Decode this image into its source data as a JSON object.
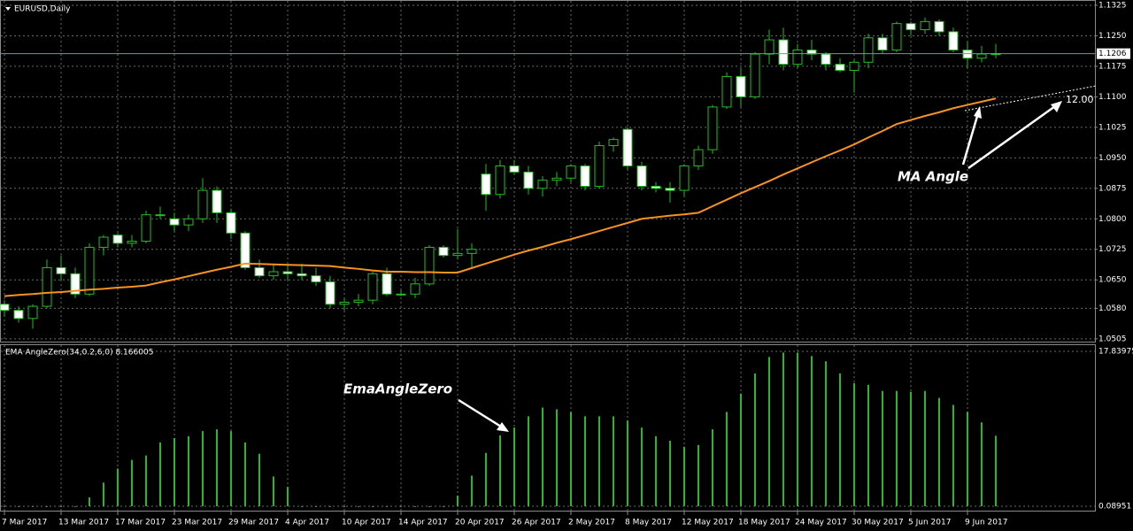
{
  "chart_data": [
    {
      "type": "candlestick",
      "title": "EURUSD,Daily",
      "open": [
        1.059,
        1.0575,
        1.0555,
        1.0585,
        1.068,
        1.0665,
        1.0615,
        1.073,
        1.076,
        1.074,
        1.0745,
        1.081,
        1.08,
        1.0785,
        1.08,
        1.087,
        1.0815,
        1.0765,
        1.068,
        1.066,
        1.067,
        1.0665,
        1.066,
        1.0645,
        1.059,
        1.0595,
        1.06,
        1.0665,
        1.0615,
        1.0615,
        1.064,
        1.073,
        1.071,
        1.0715,
        1.091,
        1.086,
        1.093,
        1.0915,
        1.0875,
        1.0895,
        1.09,
        1.093,
        1.088,
        1.098,
        1.102,
        1.093,
        1.088,
        1.0875,
        1.087,
        1.093,
        1.097,
        1.1075,
        1.115,
        1.11,
        1.1205,
        1.124,
        1.118,
        1.1215,
        1.1205,
        1.118,
        1.1165,
        1.1185,
        1.1245,
        1.1215,
        1.128,
        1.1265,
        1.1285,
        1.126,
        1.1215,
        1.1195,
        1.1205
      ],
      "high": [
        1.06,
        1.0585,
        1.059,
        1.07,
        1.071,
        1.068,
        1.074,
        1.076,
        1.0765,
        1.076,
        1.082,
        1.083,
        1.0815,
        1.081,
        1.09,
        1.088,
        1.0825,
        1.077,
        1.07,
        1.069,
        1.0685,
        1.069,
        1.068,
        1.066,
        1.0605,
        1.0615,
        1.067,
        1.068,
        1.0625,
        1.0655,
        1.0735,
        1.0735,
        1.0775,
        1.074,
        1.0935,
        1.0945,
        1.0945,
        1.093,
        1.0905,
        1.0915,
        1.0935,
        1.0935,
        1.099,
        1.1,
        1.1025,
        1.094,
        1.089,
        1.089,
        1.0935,
        1.098,
        1.108,
        1.116,
        1.117,
        1.121,
        1.1265,
        1.127,
        1.123,
        1.124,
        1.121,
        1.1195,
        1.119,
        1.1255,
        1.1255,
        1.1285,
        1.1285,
        1.1295,
        1.129,
        1.127,
        1.1235,
        1.1225,
        1.123
      ],
      "low": [
        1.056,
        1.0545,
        1.053,
        1.058,
        1.065,
        1.0605,
        1.061,
        1.071,
        1.073,
        1.073,
        1.074,
        1.08,
        1.077,
        1.077,
        1.079,
        1.079,
        1.075,
        1.0675,
        1.0655,
        1.065,
        1.065,
        1.065,
        1.0635,
        1.058,
        1.0575,
        1.0585,
        1.059,
        1.061,
        1.061,
        1.0605,
        1.0635,
        1.0705,
        1.07,
        1.068,
        1.082,
        1.085,
        1.091,
        1.086,
        1.0855,
        1.088,
        1.089,
        1.087,
        1.0875,
        1.0965,
        1.092,
        1.087,
        1.0865,
        1.084,
        1.0855,
        1.092,
        1.096,
        1.107,
        1.1075,
        1.1095,
        1.118,
        1.1165,
        1.117,
        1.119,
        1.1165,
        1.116,
        1.111,
        1.117,
        1.1205,
        1.121,
        1.125,
        1.1255,
        1.125,
        1.121,
        1.117,
        1.1185,
        1.1195
      ],
      "close": [
        1.0575,
        1.0555,
        1.0585,
        1.068,
        1.0665,
        1.0615,
        1.073,
        1.0755,
        1.074,
        1.0745,
        1.081,
        1.081,
        1.0785,
        1.08,
        1.087,
        1.0815,
        1.0765,
        1.068,
        1.066,
        1.067,
        1.0665,
        1.066,
        1.0645,
        1.059,
        1.0595,
        1.06,
        1.0665,
        1.0615,
        1.0615,
        1.064,
        1.073,
        1.071,
        1.0715,
        1.0725,
        1.086,
        1.093,
        1.0915,
        1.0875,
        1.0895,
        1.09,
        1.093,
        1.088,
        1.098,
        1.0995,
        1.093,
        1.088,
        1.0875,
        1.087,
        1.093,
        1.097,
        1.1075,
        1.115,
        1.11,
        1.1205,
        1.124,
        1.118,
        1.1215,
        1.1205,
        1.118,
        1.1165,
        1.1185,
        1.1245,
        1.1215,
        1.128,
        1.1265,
        1.1285,
        1.126,
        1.1215,
        1.1195,
        1.1205,
        1.1206
      ],
      "ma": {
        "color": "#f7931e",
        "values": [
          1.061,
          1.0613,
          1.0615,
          1.0618,
          1.062,
          1.0623,
          1.0626,
          1.0628,
          1.0631,
          1.0633,
          1.0636,
          1.0644,
          1.0651,
          1.0659,
          1.0667,
          1.0675,
          1.0682,
          1.069,
          1.0689,
          1.0688,
          1.0687,
          1.0686,
          1.0685,
          1.0684,
          1.068,
          1.0677,
          1.0673,
          1.067,
          1.067,
          1.0669,
          1.0669,
          1.0668,
          1.0668,
          1.0679,
          1.069,
          1.0701,
          1.0712,
          1.0722,
          1.0731,
          1.0741,
          1.075,
          1.076,
          1.077,
          1.078,
          1.079,
          1.08,
          1.0804,
          1.0808,
          1.0811,
          1.0815,
          1.0831,
          1.0847,
          1.0863,
          1.0878,
          1.0893,
          1.0909,
          1.0924,
          1.0939,
          1.0954,
          1.0968,
          1.0983,
          1.1,
          1.1016,
          1.1033,
          1.1043,
          1.1053,
          1.1062,
          1.1072,
          1.108,
          1.1088,
          1.1096
        ]
      },
      "bull_color": "#000000",
      "bear_color": "#ffffff",
      "wick_color": "#22c022",
      "current_price": 1.1206,
      "ylim": [
        1.0496,
        1.1338
      ],
      "yticks": [
        1.1325,
        {
          "value": 1.125,
          "label": "1.1250"
        },
        1.1175,
        {
          "value": 1.11,
          "label": "1.1100"
        },
        1.1025,
        {
          "value": 1.095,
          "label": "1.0950"
        },
        1.0875,
        {
          "value": 1.08,
          "label": "1.0800"
        },
        1.0725,
        {
          "value": 1.065,
          "label": "1.0650"
        },
        {
          "value": 1.058,
          "label": "1.0580"
        },
        1.0505
      ],
      "grid": true,
      "annotations": [
        "MA Angle",
        "12.00"
      ]
    },
    {
      "type": "bar",
      "title": "EMA AngleZero(34,0.2,6,0) 8.166005",
      "categories": [
        "7 Mar 2017",
        null,
        null,
        null,
        "13 Mar 2017",
        null,
        null,
        null,
        "17 Mar 2017",
        null,
        null,
        null,
        "23 Mar 2017",
        null,
        null,
        null,
        "29 Mar 2017",
        null,
        null,
        null,
        "4 Apr 2017",
        null,
        null,
        null,
        "10 Apr 2017",
        null,
        null,
        null,
        "14 Apr 2017",
        null,
        null,
        null,
        "20 Apr 2017",
        null,
        null,
        null,
        "26 Apr 2017",
        null,
        null,
        null,
        "2 May 2017",
        null,
        null,
        null,
        "8 May 2017",
        null,
        null,
        null,
        "12 May 2017",
        null,
        null,
        null,
        "18 May 2017",
        null,
        null,
        null,
        "24 May 2017",
        null,
        null,
        null,
        "30 May 2017",
        null,
        null,
        null,
        "5 Jun 2017",
        null,
        null,
        null,
        "9 Jun 2017",
        null,
        null
      ],
      "values": [
        0,
        0,
        0,
        0,
        0,
        0,
        1.1,
        2.8,
        4.4,
        5.4,
        5.9,
        7.4,
        7.9,
        8.1,
        8.7,
        8.9,
        8.7,
        7.4,
        6.1,
        3.5,
        2.3,
        0,
        0,
        0,
        0,
        0,
        0,
        0,
        0,
        0,
        0,
        0,
        1.3,
        3.6,
        6.2,
        8.2,
        9.1,
        10.4,
        11.4,
        11.2,
        10.9,
        10.4,
        10.4,
        10.4,
        9.9,
        9.1,
        8.1,
        7.6,
        6.9,
        7.1,
        8.9,
        10.9,
        13.0,
        15.3,
        17.2,
        17.7,
        17.7,
        17.3,
        16.7,
        15.3,
        14.2,
        14.0,
        13.3,
        13.3,
        13.2,
        13.3,
        12.5,
        11.7,
        10.9,
        9.7,
        8.166005
      ],
      "color": "#2db52d",
      "ylim": [
        0.08951,
        17.83975
      ],
      "yticks": [
        17.83975,
        0.08951
      ],
      "grid": true,
      "annotations": [
        "EmaAngleZero"
      ]
    }
  ]
}
